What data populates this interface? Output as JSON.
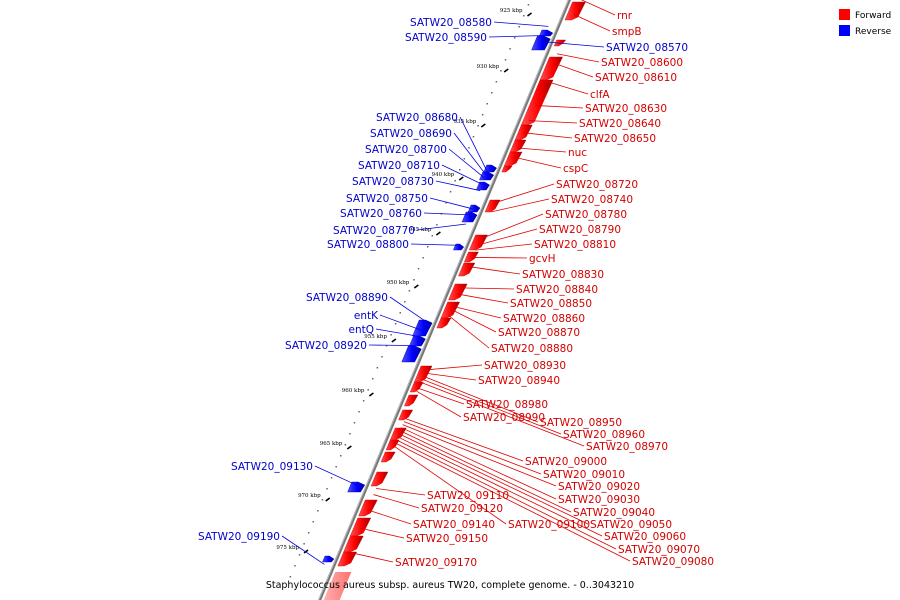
{
  "caption": "Staphylococcus aureus subsp. aureus TW20, complete genome. - 0..3043210",
  "legend": {
    "forward": {
      "label": "Forward",
      "color": "#ff0000"
    },
    "reverse": {
      "label": "Reverse",
      "color": "#0000ff"
    }
  },
  "ticks": [
    "925 kbp",
    "930 kbp",
    "935 kbp",
    "940 kbp",
    "945 kbp",
    "950 kbp",
    "955 kbp",
    "960 kbp",
    "965 kbp",
    "970 kbp",
    "975 kbp"
  ],
  "forward_genes": [
    {
      "label": "rnr",
      "t": 0.005
    },
    {
      "label": "smpB",
      "t": 0.03
    },
    {
      "label": "SATW20_08600",
      "t": 0.095
    },
    {
      "label": "SATW20_08610",
      "t": 0.11
    },
    {
      "label": "clfA",
      "t": 0.14
    },
    {
      "label": "SATW20_08630",
      "t": 0.18
    },
    {
      "label": "SATW20_08640",
      "t": 0.205
    },
    {
      "label": "SATW20_08650",
      "t": 0.225
    },
    {
      "label": "nuc",
      "t": 0.25
    },
    {
      "label": "cspC",
      "t": 0.265
    },
    {
      "label": "SATW20_08720",
      "t": 0.34
    },
    {
      "label": "SATW20_08740",
      "t": 0.355
    },
    {
      "label": "SATW20_08780",
      "t": 0.4
    },
    {
      "label": "SATW20_08790",
      "t": 0.41
    },
    {
      "label": "SATW20_08810",
      "t": 0.418
    },
    {
      "label": "gcvH",
      "t": 0.43
    },
    {
      "label": "SATW20_08830",
      "t": 0.445
    },
    {
      "label": "SATW20_08840",
      "t": 0.48
    },
    {
      "label": "SATW20_08850",
      "t": 0.49
    },
    {
      "label": "SATW20_08860",
      "t": 0.51
    },
    {
      "label": "SATW20_08870",
      "t": 0.515
    },
    {
      "label": "SATW20_08880",
      "t": 0.525
    },
    {
      "label": "SATW20_08930",
      "t": 0.615
    },
    {
      "label": "SATW20_08940",
      "t": 0.62
    },
    {
      "label": "SATW20_08980",
      "t": 0.645
    },
    {
      "label": "SATW20_08990",
      "t": 0.65
    },
    {
      "label": "SATW20_08950",
      "t": 0.625
    },
    {
      "label": "SATW20_08960",
      "t": 0.63
    },
    {
      "label": "SATW20_08970",
      "t": 0.635
    },
    {
      "label": "SATW20_09000",
      "t": 0.695
    },
    {
      "label": "SATW20_09010",
      "t": 0.7
    },
    {
      "label": "SATW20_09020",
      "t": 0.705
    },
    {
      "label": "SATW20_09030",
      "t": 0.71
    },
    {
      "label": "SATW20_09040",
      "t": 0.715
    },
    {
      "label": "SATW20_09050",
      "t": 0.72
    },
    {
      "label": "SATW20_09060",
      "t": 0.725
    },
    {
      "label": "SATW20_09070",
      "t": 0.73
    },
    {
      "label": "SATW20_09080",
      "t": 0.735
    },
    {
      "label": "SATW20_09100",
      "t": 0.74
    },
    {
      "label": "SATW20_09110",
      "t": 0.81
    },
    {
      "label": "SATW20_09120",
      "t": 0.82
    },
    {
      "label": "SATW20_09140",
      "t": 0.845
    },
    {
      "label": "SATW20_09150",
      "t": 0.875
    },
    {
      "label": "SATW20_09170",
      "t": 0.915
    }
  ],
  "reverse_genes": [
    {
      "label": "SATW20_08580",
      "t": 0.05
    },
    {
      "label": "SATW20_08590",
      "t": 0.065
    },
    {
      "label": "SATW20_08570",
      "t": 0.075
    },
    {
      "label": "SATW20_08680",
      "t": 0.29
    },
    {
      "label": "SATW20_08690",
      "t": 0.295
    },
    {
      "label": "SATW20_08700",
      "t": 0.3
    },
    {
      "label": "SATW20_08710",
      "t": 0.31
    },
    {
      "label": "SATW20_08730",
      "t": 0.32
    },
    {
      "label": "SATW20_08750",
      "t": 0.35
    },
    {
      "label": "SATW20_08760",
      "t": 0.36
    },
    {
      "label": "SATW20_08770",
      "t": 0.375
    },
    {
      "label": "SATW20_08800",
      "t": 0.41
    },
    {
      "label": "SATW20_08890",
      "t": 0.535
    },
    {
      "label": "entK",
      "t": 0.55
    },
    {
      "label": "entQ",
      "t": 0.56
    },
    {
      "label": "SATW20_08920",
      "t": 0.575
    },
    {
      "label": "SATW20_09130",
      "t": 0.805
    },
    {
      "label": "SATW20_09190",
      "t": 0.935
    }
  ]
}
